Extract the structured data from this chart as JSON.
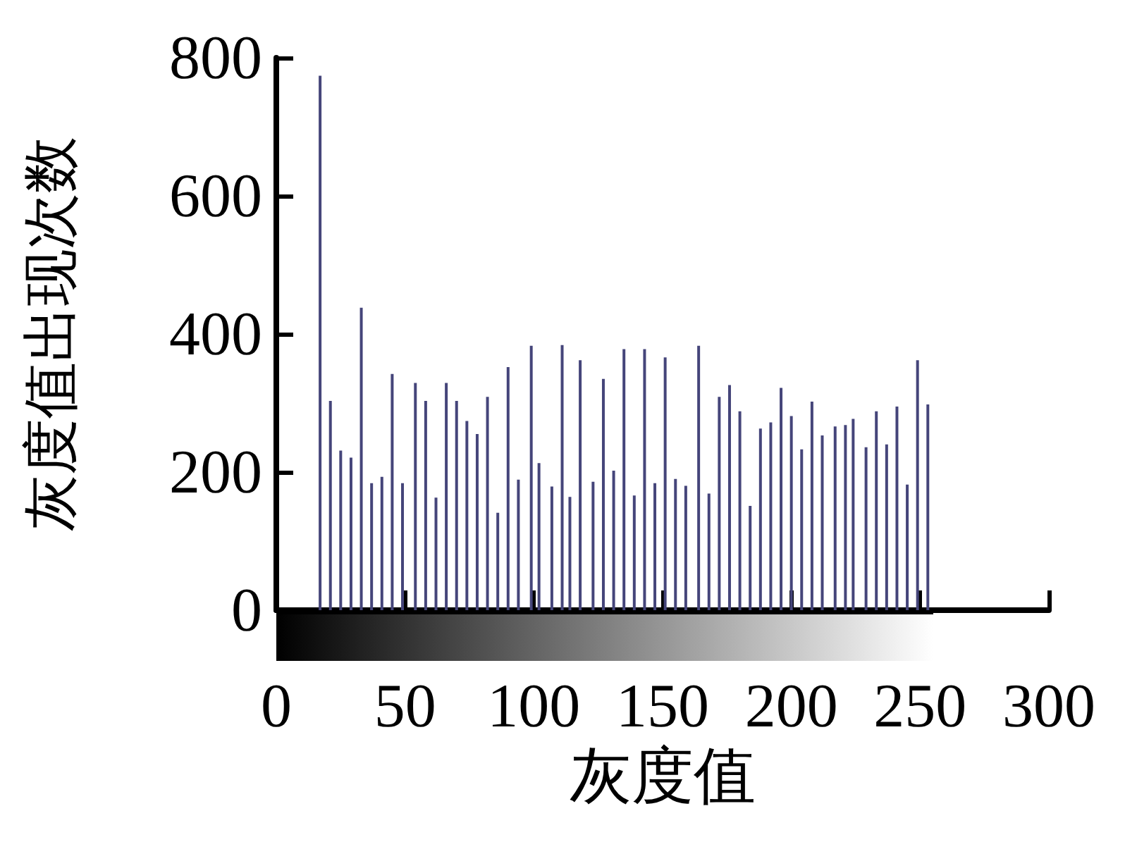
{
  "chart_data": {
    "type": "bar",
    "xlabel": "灰度值",
    "ylabel": "灰度值出现次数",
    "color": "#45457a",
    "x": [
      17,
      21,
      25,
      29,
      33,
      37,
      41,
      45,
      49,
      54,
      58,
      62,
      66,
      70,
      74,
      78,
      82,
      86,
      90,
      94,
      99,
      102,
      107,
      111,
      114,
      118,
      123,
      127,
      131,
      135,
      139,
      143,
      147,
      151,
      155,
      159,
      164,
      168,
      172,
      176,
      180,
      184,
      188,
      192,
      196,
      200,
      204,
      208,
      212,
      217,
      221,
      224,
      229,
      233,
      237,
      241,
      245,
      249,
      253
    ],
    "values": [
      774,
      303,
      231,
      221,
      438,
      184,
      193,
      342,
      184,
      329,
      303,
      163,
      329,
      303,
      274,
      255,
      309,
      141,
      352,
      189,
      383,
      213,
      179,
      384,
      164,
      362,
      186,
      335,
      202,
      378,
      166,
      378,
      184,
      366,
      190,
      180,
      383,
      169,
      309,
      326,
      288,
      151,
      263,
      272,
      322,
      281,
      233,
      302,
      253,
      266,
      268,
      277,
      236,
      288,
      240,
      295,
      182,
      362,
      298
    ],
    "xlim": [
      0,
      300
    ],
    "xticks": [
      0,
      50,
      100,
      150,
      200,
      250,
      300
    ],
    "ylim": [
      0,
      800
    ],
    "yticks": [
      0,
      200,
      400,
      600,
      800
    ],
    "grid": false
  }
}
